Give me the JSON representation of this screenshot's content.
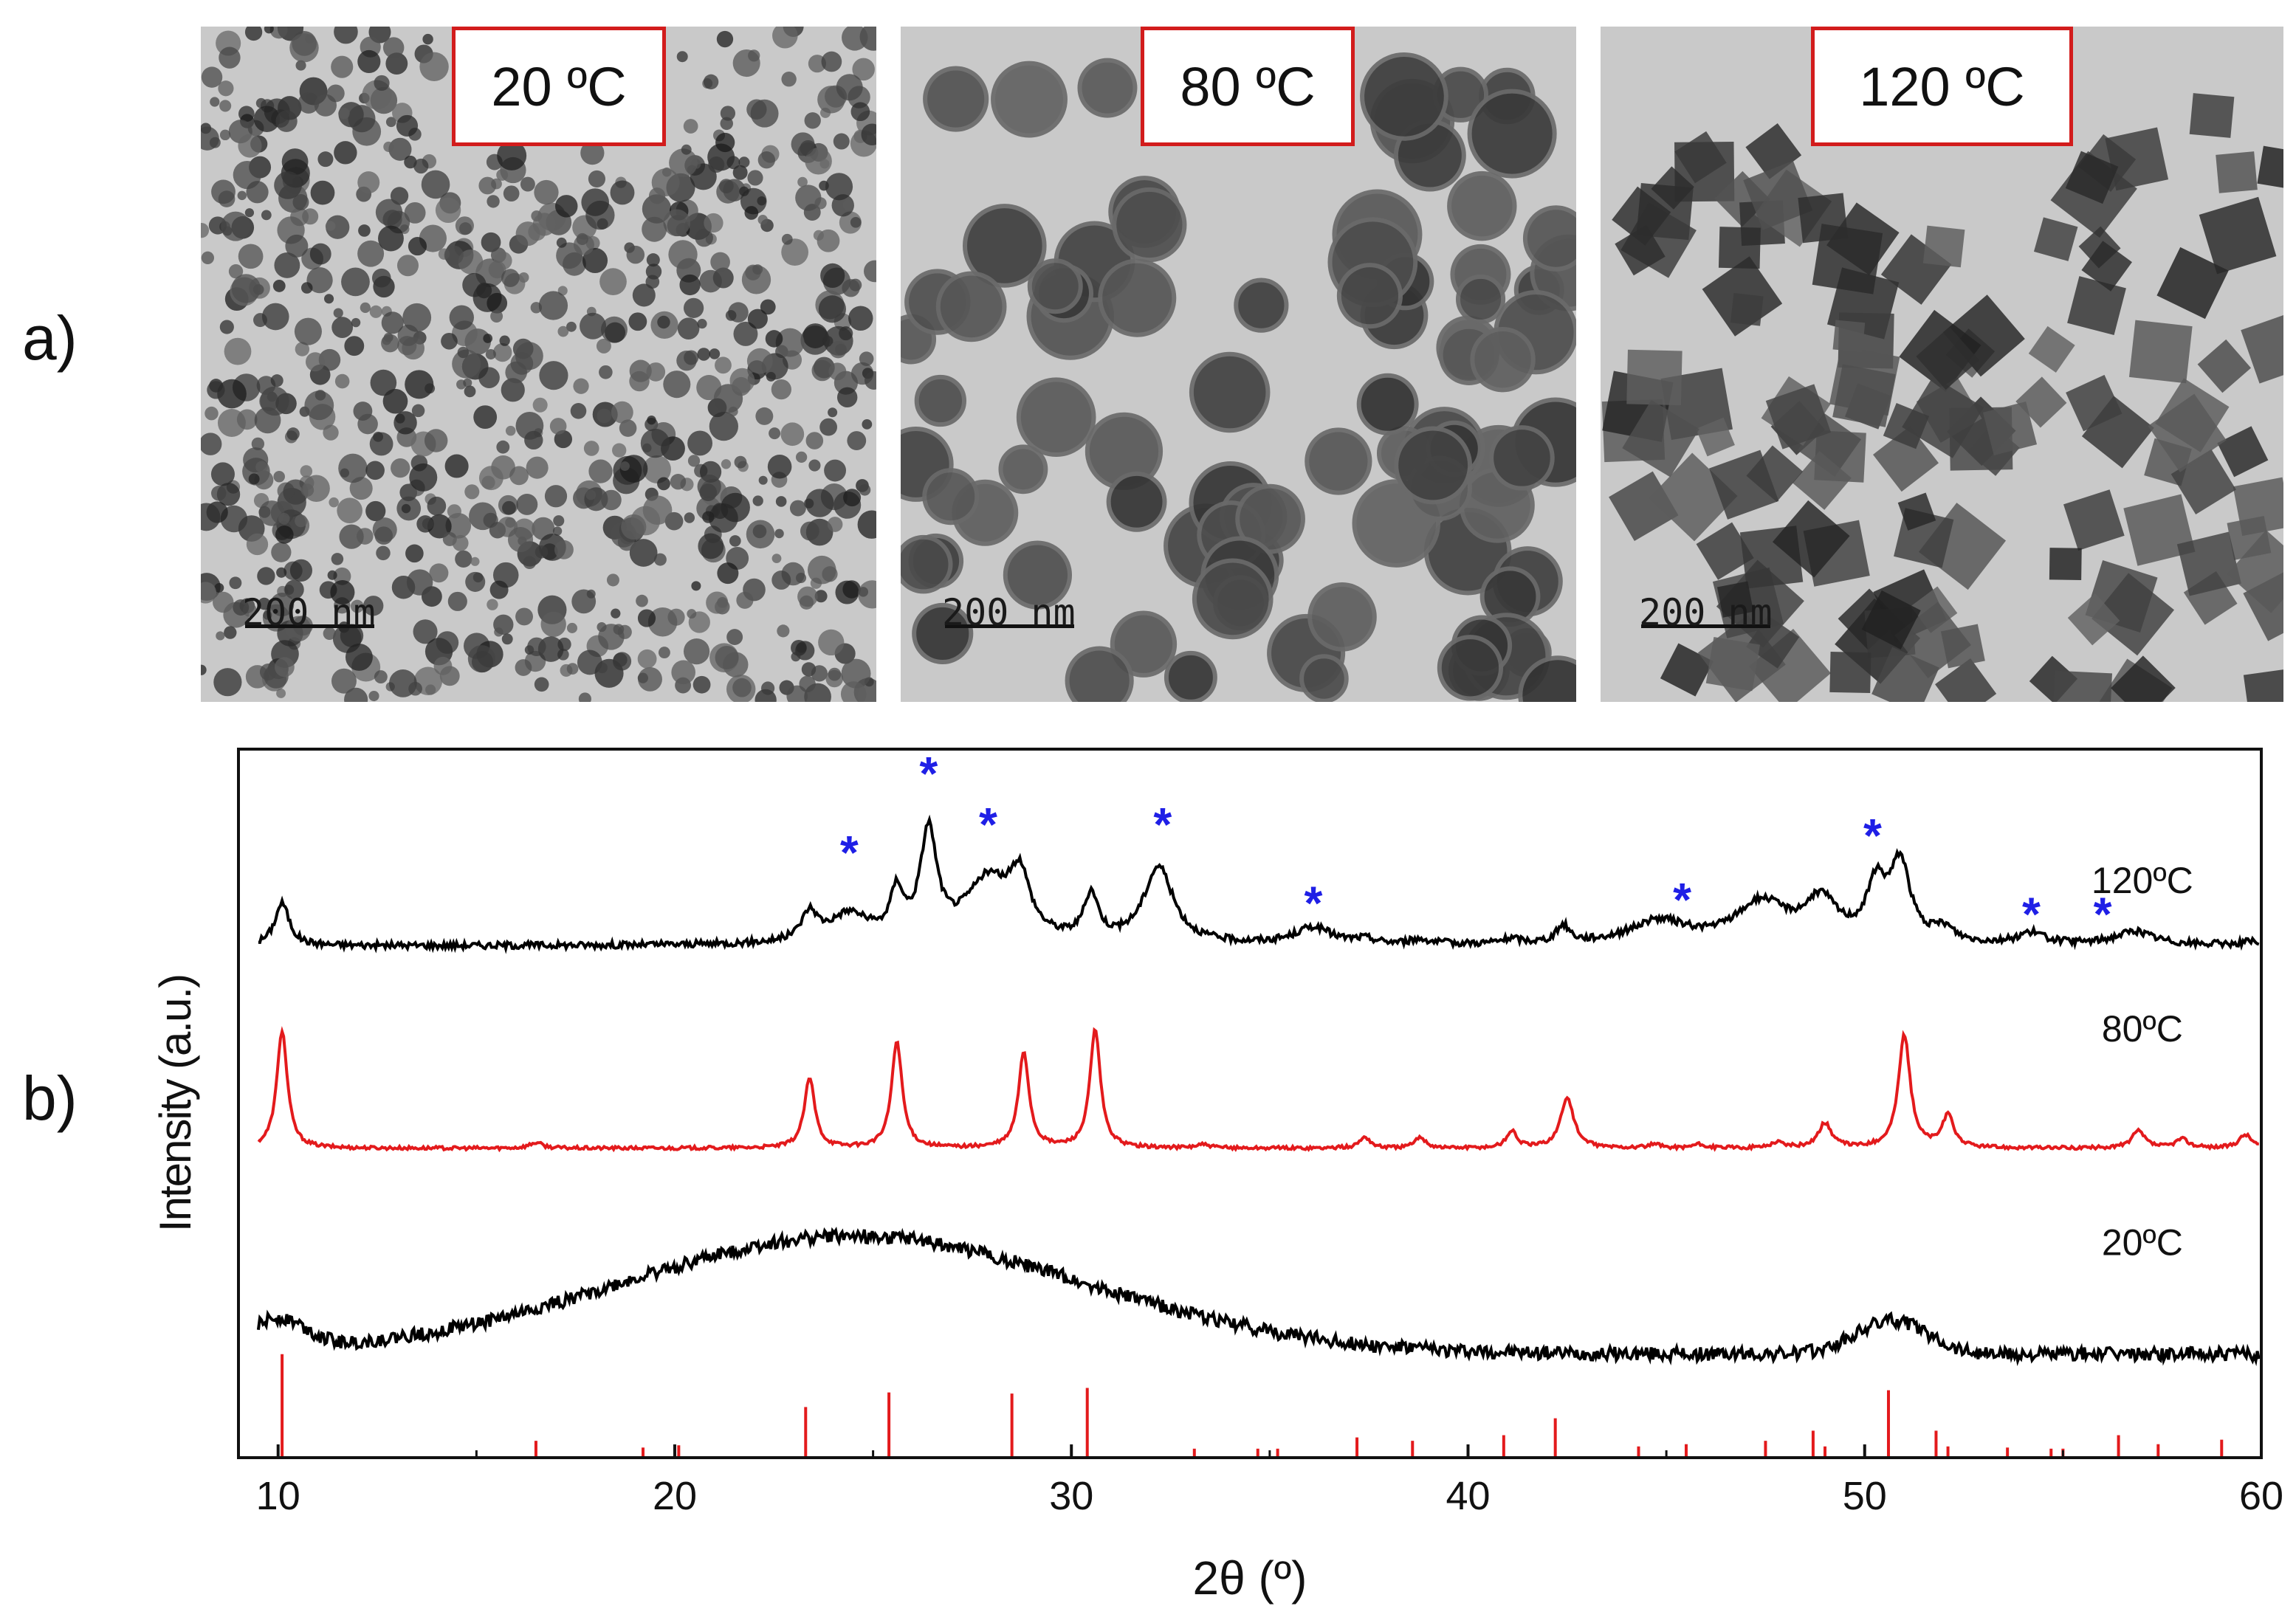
{
  "panel_labels": {
    "a": "a)",
    "b": "b)"
  },
  "tem_images": [
    {
      "temperature": "20 ºC",
      "scale_bar": "200 nm",
      "morphology": "small aggregated irregular particles"
    },
    {
      "temperature": "80 ºC",
      "scale_bar": "200 nm",
      "morphology": "rounded faceted particles"
    },
    {
      "temperature": "120 ºC",
      "scale_bar": "200 nm",
      "morphology": "cubic particles"
    }
  ],
  "colors": {
    "frame": "#d21c1c",
    "trace_120": "#000000",
    "trace_80": "#e31a1c",
    "trace_20": "#000000",
    "reference": "#e31a1c",
    "star": "#1f1fe6"
  },
  "chart_data": {
    "type": "line",
    "xlabel": "2θ (º)",
    "ylabel": "Intensity (a.u.)",
    "xlim": [
      9,
      60
    ],
    "xticks": [
      10,
      20,
      30,
      40,
      50,
      60
    ],
    "y_units": "arbitrary, stacked traces",
    "series": [
      {
        "name": "120ºC",
        "color": "#000000",
        "baseline": 4.55,
        "noise": 0.03,
        "background": [],
        "peaks": [
          {
            "x": 10.1,
            "h": 0.38,
            "w": 0.22
          },
          {
            "x": 23.4,
            "h": 0.25,
            "w": 0.25
          },
          {
            "x": 24.4,
            "h": 0.25,
            "w": 0.6
          },
          {
            "x": 25.6,
            "h": 0.4,
            "w": 0.2
          },
          {
            "x": 26.4,
            "h": 0.95,
            "w": 0.25
          },
          {
            "x": 27.9,
            "h": 0.55,
            "w": 0.7
          },
          {
            "x": 28.7,
            "h": 0.5,
            "w": 0.3
          },
          {
            "x": 30.5,
            "h": 0.4,
            "w": 0.22
          },
          {
            "x": 32.2,
            "h": 0.68,
            "w": 0.45
          },
          {
            "x": 36.1,
            "h": 0.15,
            "w": 0.55
          },
          {
            "x": 37.4,
            "h": 0.04,
            "w": 0.3
          },
          {
            "x": 38.8,
            "h": 0.04,
            "w": 0.3
          },
          {
            "x": 41.1,
            "h": 0.04,
            "w": 0.3
          },
          {
            "x": 42.4,
            "h": 0.15,
            "w": 0.2
          },
          {
            "x": 44.8,
            "h": 0.2,
            "w": 0.9
          },
          {
            "x": 47.4,
            "h": 0.36,
            "w": 0.8
          },
          {
            "x": 48.9,
            "h": 0.36,
            "w": 0.5
          },
          {
            "x": 50.3,
            "h": 0.48,
            "w": 0.3
          },
          {
            "x": 50.9,
            "h": 0.68,
            "w": 0.3
          },
          {
            "x": 52.0,
            "h": 0.12,
            "w": 0.3
          },
          {
            "x": 54.2,
            "h": 0.1,
            "w": 0.4
          },
          {
            "x": 56.8,
            "h": 0.12,
            "w": 0.6
          },
          {
            "x": 59.7,
            "h": 0.03,
            "w": 0.3
          }
        ]
      },
      {
        "name": "80ºC",
        "color": "#e31a1c",
        "baseline": 2.75,
        "noise": 0.015,
        "background": [],
        "peaks": [
          {
            "x": 10.1,
            "h": 1.05,
            "w": 0.16
          },
          {
            "x": 16.5,
            "h": 0.05,
            "w": 0.2
          },
          {
            "x": 23.4,
            "h": 0.62,
            "w": 0.16
          },
          {
            "x": 25.6,
            "h": 0.95,
            "w": 0.16
          },
          {
            "x": 28.8,
            "h": 0.85,
            "w": 0.16
          },
          {
            "x": 30.6,
            "h": 1.05,
            "w": 0.16
          },
          {
            "x": 33.3,
            "h": 0.03,
            "w": 0.2
          },
          {
            "x": 37.4,
            "h": 0.1,
            "w": 0.16
          },
          {
            "x": 38.8,
            "h": 0.1,
            "w": 0.16
          },
          {
            "x": 41.1,
            "h": 0.15,
            "w": 0.16
          },
          {
            "x": 42.5,
            "h": 0.45,
            "w": 0.2
          },
          {
            "x": 44.7,
            "h": 0.03,
            "w": 0.2
          },
          {
            "x": 45.8,
            "h": 0.03,
            "w": 0.2
          },
          {
            "x": 47.8,
            "h": 0.05,
            "w": 0.2
          },
          {
            "x": 49.0,
            "h": 0.22,
            "w": 0.2
          },
          {
            "x": 51.0,
            "h": 1.0,
            "w": 0.18
          },
          {
            "x": 52.1,
            "h": 0.28,
            "w": 0.18
          },
          {
            "x": 56.9,
            "h": 0.15,
            "w": 0.2
          },
          {
            "x": 58.0,
            "h": 0.08,
            "w": 0.2
          },
          {
            "x": 59.6,
            "h": 0.12,
            "w": 0.2
          }
        ]
      },
      {
        "name": "20ºC",
        "color": "#000000",
        "baseline": 0.92,
        "noise": 0.06,
        "background": [
          {
            "x": 10.0,
            "h": 0.28,
            "w": 0.7
          },
          {
            "x": 24.5,
            "h": 1.05,
            "w": 5.8
          },
          {
            "x": 50.7,
            "h": 0.3,
            "w": 0.9
          }
        ],
        "peaks": []
      }
    ],
    "reference_lines": [
      {
        "x": 10.1,
        "h": 0.92
      },
      {
        "x": 16.5,
        "h": 0.15
      },
      {
        "x": 19.2,
        "h": 0.09
      },
      {
        "x": 20.1,
        "h": 0.11
      },
      {
        "x": 23.3,
        "h": 0.45
      },
      {
        "x": 25.4,
        "h": 0.58
      },
      {
        "x": 28.5,
        "h": 0.57
      },
      {
        "x": 30.4,
        "h": 0.62
      },
      {
        "x": 33.1,
        "h": 0.08
      },
      {
        "x": 34.7,
        "h": 0.08
      },
      {
        "x": 35.2,
        "h": 0.08
      },
      {
        "x": 37.2,
        "h": 0.18
      },
      {
        "x": 38.6,
        "h": 0.15
      },
      {
        "x": 40.9,
        "h": 0.2
      },
      {
        "x": 42.2,
        "h": 0.35
      },
      {
        "x": 44.3,
        "h": 0.1
      },
      {
        "x": 45.5,
        "h": 0.12
      },
      {
        "x": 47.5,
        "h": 0.15
      },
      {
        "x": 48.7,
        "h": 0.24
      },
      {
        "x": 49.0,
        "h": 0.1
      },
      {
        "x": 50.6,
        "h": 0.6
      },
      {
        "x": 51.8,
        "h": 0.24
      },
      {
        "x": 52.1,
        "h": 0.1
      },
      {
        "x": 53.6,
        "h": 0.09
      },
      {
        "x": 54.7,
        "h": 0.08
      },
      {
        "x": 55.0,
        "h": 0.08
      },
      {
        "x": 56.4,
        "h": 0.2
      },
      {
        "x": 57.4,
        "h": 0.12
      },
      {
        "x": 59.0,
        "h": 0.16
      }
    ],
    "star_markers": [
      {
        "x": 24.4,
        "y": 5.5
      },
      {
        "x": 26.4,
        "y": 6.2
      },
      {
        "x": 27.9,
        "y": 5.75
      },
      {
        "x": 32.3,
        "y": 5.75
      },
      {
        "x": 36.1,
        "y": 5.05
      },
      {
        "x": 45.4,
        "y": 5.08
      },
      {
        "x": 50.2,
        "y": 5.65
      },
      {
        "x": 54.2,
        "y": 4.95
      },
      {
        "x": 56.0,
        "y": 4.95
      }
    ],
    "star_symbol": "*",
    "trace_labels": [
      {
        "text": "120ºC",
        "x": 57.0,
        "y": 5.02
      },
      {
        "text": "80ºC",
        "x": 57.0,
        "y": 3.7
      },
      {
        "text": "20ºC",
        "x": 57.0,
        "y": 1.8
      }
    ],
    "ylim_internal": [
      0,
      6.3
    ]
  }
}
